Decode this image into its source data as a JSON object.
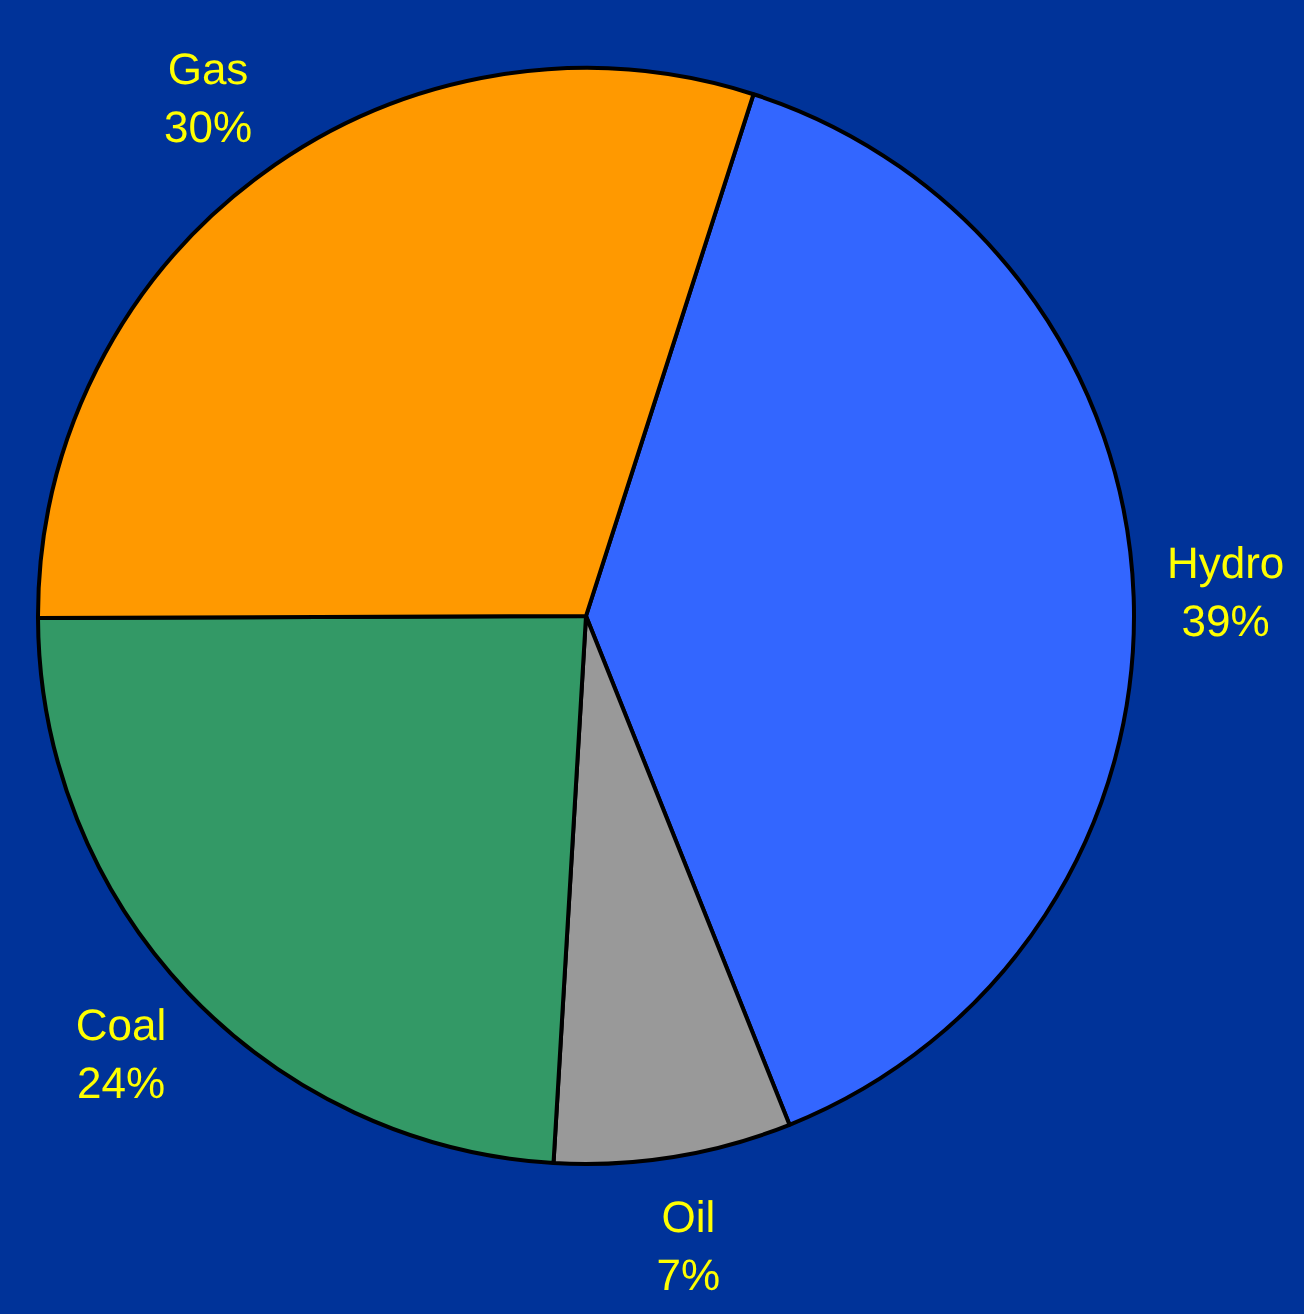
{
  "chart_data": {
    "type": "pie",
    "categories": [
      "Hydro",
      "Oil",
      "Coal",
      "Gas"
    ],
    "values": [
      39,
      7,
      24,
      30
    ],
    "colors": [
      "#3366ff",
      "#999999",
      "#339966",
      "#ff9900"
    ],
    "value_labels": [
      "39%",
      "7%",
      "24%",
      "30%"
    ]
  }
}
